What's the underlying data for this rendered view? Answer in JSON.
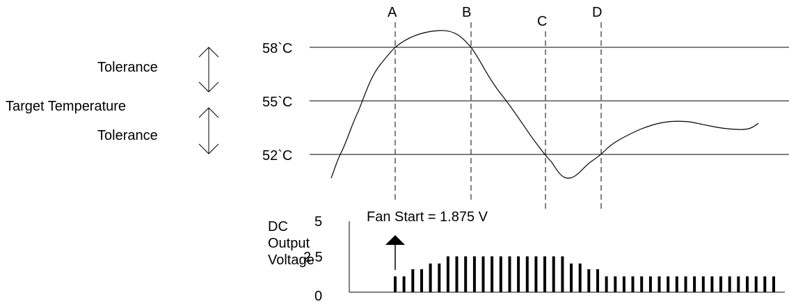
{
  "left_labels": {
    "tolerance_upper": "Tolerance",
    "target": "Target Temperature",
    "tolerance_lower": "Tolerance"
  },
  "temperature_levels": [
    {
      "label": "58`C",
      "value": 58
    },
    {
      "label": "55`C",
      "value": 55
    },
    {
      "label": "52`C",
      "value": 52
    }
  ],
  "markers": [
    "A",
    "B",
    "C",
    "D"
  ],
  "voltage_axis": {
    "title_lines": [
      "DC",
      "Output",
      "Voltage"
    ],
    "ticks": [
      {
        "label": "5",
        "value": 5
      },
      {
        "label": "2.5",
        "value": 2.5
      },
      {
        "label": "0",
        "value": 0
      }
    ]
  },
  "annotation": {
    "fan_start": "Fan Start = 1.875 V"
  },
  "chart_data": {
    "type": "bar",
    "ylim": [
      0,
      5
    ],
    "values": [
      1.1,
      1.1,
      1.6,
      1.6,
      2.0,
      2.0,
      2.5,
      2.5,
      2.5,
      2.5,
      2.5,
      2.5,
      2.5,
      2.5,
      2.5,
      2.5,
      2.5,
      2.5,
      2.5,
      2.5,
      2.0,
      2.0,
      1.6,
      1.6,
      1.1,
      1.1,
      1.1,
      1.1,
      1.1,
      1.1,
      1.1,
      1.1,
      1.1,
      1.1,
      1.1,
      1.1,
      1.1,
      1.1,
      1.1,
      1.1,
      1.1,
      1.1,
      1.1,
      1.1
    ],
    "fan_start_value": 1.875
  }
}
